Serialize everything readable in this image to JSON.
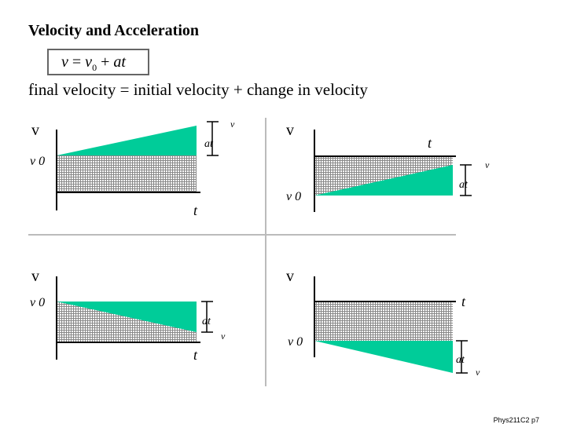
{
  "title": "Velocity and Acceleration",
  "formula": {
    "v": "v",
    "eq": "= ",
    "v0": "v",
    "sub": "0",
    "plus": " + ",
    "at": "at"
  },
  "subtitle": "final velocity = initial velocity + change in velocity",
  "footer": "Phys211C2 p7",
  "colors": {
    "fill": "#00cc99",
    "hatch": "#888888",
    "divider": "#bbbbbb"
  },
  "panels": [
    {
      "axis": "v",
      "v0": "v 0",
      "t": "t",
      "at": "at",
      "v_final": "v"
    },
    {
      "axis": "v",
      "v0": "v 0",
      "t": "t",
      "at": "at",
      "v_final": "v"
    },
    {
      "axis": "v",
      "v0": "v 0",
      "t": "t",
      "at": "at",
      "v_final": "v"
    },
    {
      "axis": "v",
      "v0": "v 0",
      "t": "t",
      "at": "at",
      "v_final": "v"
    }
  ]
}
